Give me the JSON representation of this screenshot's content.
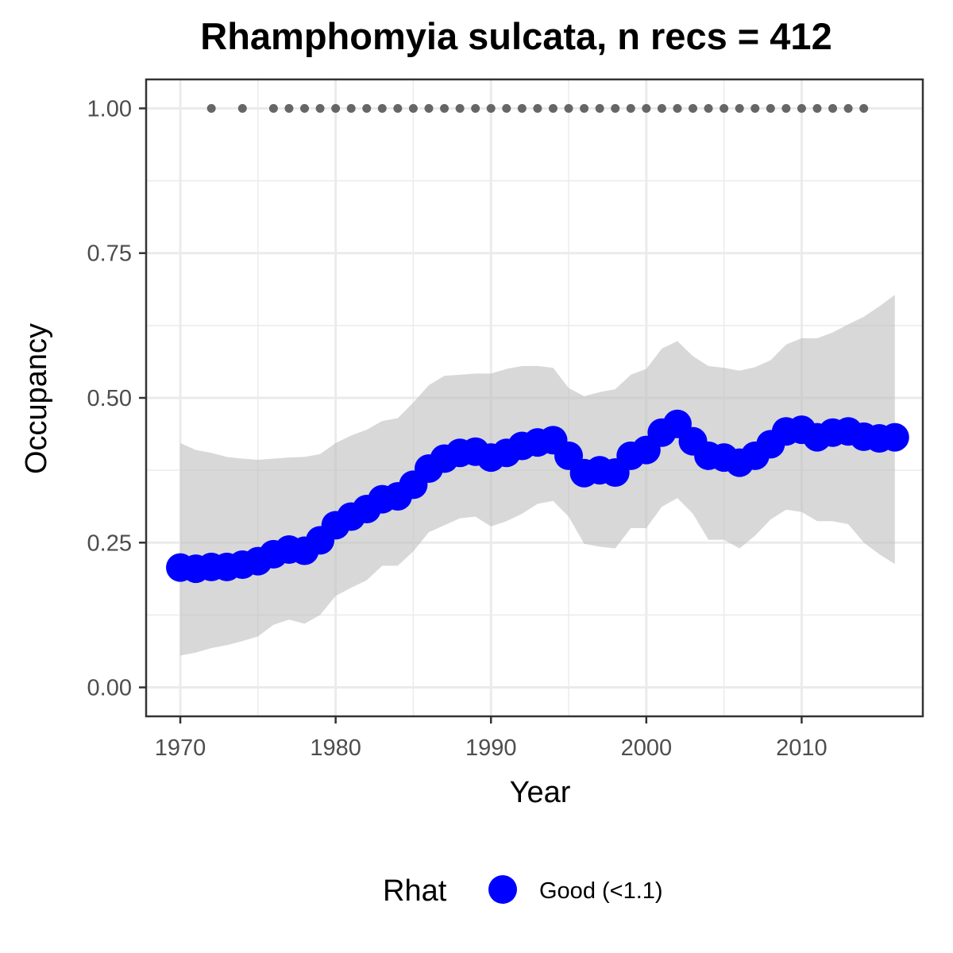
{
  "chart_data": {
    "type": "line",
    "title": "Rhamphomyia sulcata, n recs = 412",
    "xlabel": "Year",
    "ylabel": "Occupancy",
    "xlim": [
      1967.8,
      2017.8
    ],
    "ylim": [
      -0.05,
      1.05
    ],
    "x_ticks": [
      1970,
      1980,
      1990,
      2000,
      2010
    ],
    "x_tick_labels": [
      "1970",
      "1980",
      "1990",
      "2000",
      "2010"
    ],
    "y_ticks": [
      0.0,
      0.25,
      0.5,
      0.75,
      1.0
    ],
    "y_tick_labels": [
      "0.00",
      "0.25",
      "0.50",
      "0.75",
      "1.00"
    ],
    "grid": true,
    "legend": {
      "position": "bottom",
      "title": "Rhat",
      "entries": [
        {
          "label": "Good (<1.1)",
          "color": "#0000ff"
        }
      ]
    },
    "colors": {
      "mean": "#0000ff",
      "ribbon": "#bebebe",
      "detections": "#666666",
      "grid": "#ebebeb",
      "panel_border": "#333333"
    },
    "series": [
      {
        "name": "Good (<1.1)",
        "x": [
          1970,
          1971,
          1972,
          1973,
          1974,
          1975,
          1976,
          1977,
          1978,
          1979,
          1980,
          1981,
          1982,
          1983,
          1984,
          1985,
          1986,
          1987,
          1988,
          1989,
          1990,
          1991,
          1992,
          1993,
          1994,
          1995,
          1996,
          1997,
          1998,
          1999,
          2000,
          2001,
          2002,
          2003,
          2004,
          2005,
          2006,
          2007,
          2008,
          2009,
          2010,
          2011,
          2012,
          2013,
          2014,
          2015,
          2016
        ],
        "mean": [
          0.207,
          0.205,
          0.208,
          0.208,
          0.212,
          0.218,
          0.23,
          0.238,
          0.236,
          0.254,
          0.28,
          0.295,
          0.308,
          0.325,
          0.33,
          0.35,
          0.378,
          0.395,
          0.405,
          0.407,
          0.397,
          0.405,
          0.417,
          0.423,
          0.427,
          0.4,
          0.37,
          0.375,
          0.371,
          0.4,
          0.41,
          0.44,
          0.455,
          0.425,
          0.4,
          0.397,
          0.388,
          0.4,
          0.42,
          0.442,
          0.445,
          0.432,
          0.44,
          0.442,
          0.433,
          0.43,
          0.432
        ],
        "lower": [
          0.055,
          0.06,
          0.068,
          0.073,
          0.08,
          0.088,
          0.108,
          0.117,
          0.11,
          0.125,
          0.158,
          0.172,
          0.185,
          0.21,
          0.21,
          0.235,
          0.268,
          0.28,
          0.292,
          0.295,
          0.278,
          0.287,
          0.3,
          0.317,
          0.322,
          0.295,
          0.248,
          0.243,
          0.24,
          0.275,
          0.275,
          0.312,
          0.327,
          0.3,
          0.255,
          0.255,
          0.24,
          0.262,
          0.29,
          0.307,
          0.303,
          0.287,
          0.287,
          0.282,
          0.25,
          0.23,
          0.213
        ],
        "upper": [
          0.422,
          0.41,
          0.405,
          0.398,
          0.395,
          0.393,
          0.395,
          0.397,
          0.398,
          0.403,
          0.422,
          0.435,
          0.445,
          0.46,
          0.465,
          0.492,
          0.522,
          0.538,
          0.54,
          0.542,
          0.542,
          0.55,
          0.555,
          0.555,
          0.552,
          0.517,
          0.503,
          0.51,
          0.515,
          0.54,
          0.55,
          0.585,
          0.598,
          0.572,
          0.555,
          0.552,
          0.547,
          0.553,
          0.565,
          0.592,
          0.603,
          0.603,
          0.613,
          0.627,
          0.64,
          0.658,
          0.678
        ]
      },
      {
        "name": "detections",
        "x": [
          1972,
          1974,
          1976,
          1977,
          1978,
          1979,
          1980,
          1981,
          1982,
          1983,
          1984,
          1985,
          1986,
          1987,
          1988,
          1989,
          1990,
          1991,
          1992,
          1993,
          1994,
          1995,
          1996,
          1997,
          1998,
          1999,
          2000,
          2001,
          2002,
          2003,
          2004,
          2005,
          2006,
          2007,
          2008,
          2009,
          2010,
          2011,
          2012,
          2013,
          2014
        ],
        "values": [
          1,
          1,
          1,
          1,
          1,
          1,
          1,
          1,
          1,
          1,
          1,
          1,
          1,
          1,
          1,
          1,
          1,
          1,
          1,
          1,
          1,
          1,
          1,
          1,
          1,
          1,
          1,
          1,
          1,
          1,
          1,
          1,
          1,
          1,
          1,
          1,
          1,
          1,
          1,
          1,
          1
        ]
      }
    ]
  }
}
